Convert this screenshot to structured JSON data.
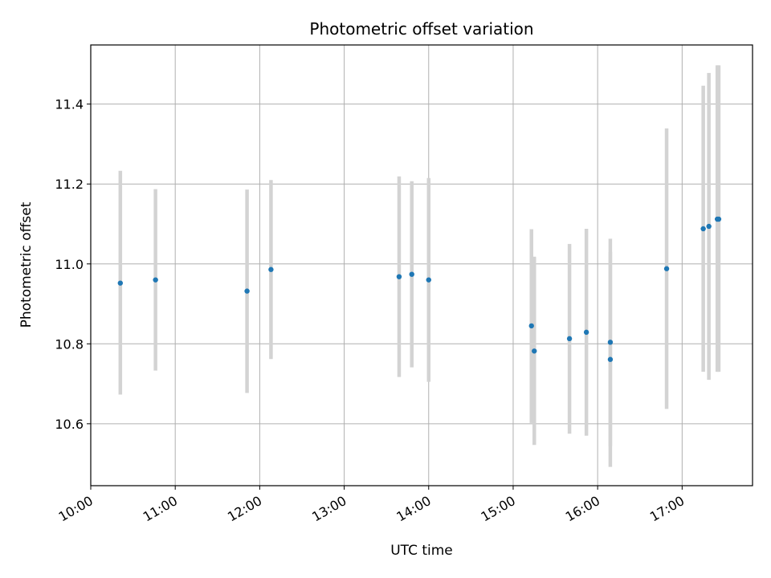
{
  "chart_data": {
    "type": "scatter",
    "title": "Photometric offset variation",
    "xlabel": "UTC time",
    "ylabel": "Photometric offset",
    "xlim": [
      "10:00",
      "17:50"
    ],
    "ylim": [
      10.445,
      11.548
    ],
    "grid": true,
    "x_ticks": [
      "10:00",
      "11:00",
      "12:00",
      "13:00",
      "14:00",
      "15:00",
      "16:00",
      "17:00"
    ],
    "y_ticks": [
      10.6,
      10.8,
      11.0,
      11.2,
      11.4
    ],
    "colors": {
      "point": "#1f77b4",
      "error_bar": "#d3d3d3",
      "grid": "#b0b0b0"
    },
    "points": [
      {
        "x": "10:21",
        "y": 10.952,
        "low": 10.673,
        "high": 11.233
      },
      {
        "x": "10:46",
        "y": 10.96,
        "low": 10.733,
        "high": 11.187
      },
      {
        "x": "11:51",
        "y": 10.932,
        "low": 10.677,
        "high": 11.186
      },
      {
        "x": "12:08",
        "y": 10.986,
        "low": 10.762,
        "high": 11.21
      },
      {
        "x": "13:39",
        "y": 10.968,
        "low": 10.717,
        "high": 11.219
      },
      {
        "x": "13:48",
        "y": 10.974,
        "low": 10.741,
        "high": 11.207
      },
      {
        "x": "14:00",
        "y": 10.96,
        "low": 10.705,
        "high": 11.215
      },
      {
        "x": "15:13",
        "y": 10.845,
        "low": 10.602,
        "high": 11.087
      },
      {
        "x": "15:15",
        "y": 10.782,
        "low": 10.547,
        "high": 11.018
      },
      {
        "x": "15:40",
        "y": 10.813,
        "low": 10.575,
        "high": 11.05
      },
      {
        "x": "15:52",
        "y": 10.829,
        "low": 10.57,
        "high": 11.088
      },
      {
        "x": "16:09",
        "y": 10.804,
        "low": 10.544,
        "high": 11.063
      },
      {
        "x": "16:09",
        "y": 10.761,
        "low": 10.492,
        "high": 11.03
      },
      {
        "x": "16:49",
        "y": 10.988,
        "low": 10.637,
        "high": 11.339
      },
      {
        "x": "17:15",
        "y": 11.088,
        "low": 10.73,
        "high": 11.446
      },
      {
        "x": "17:19",
        "y": 11.094,
        "low": 10.71,
        "high": 11.478
      },
      {
        "x": "17:25",
        "y": 11.112,
        "low": 10.73,
        "high": 11.497
      },
      {
        "x": "17:26",
        "y": 11.112,
        "low": 10.73,
        "high": 11.497
      }
    ]
  }
}
